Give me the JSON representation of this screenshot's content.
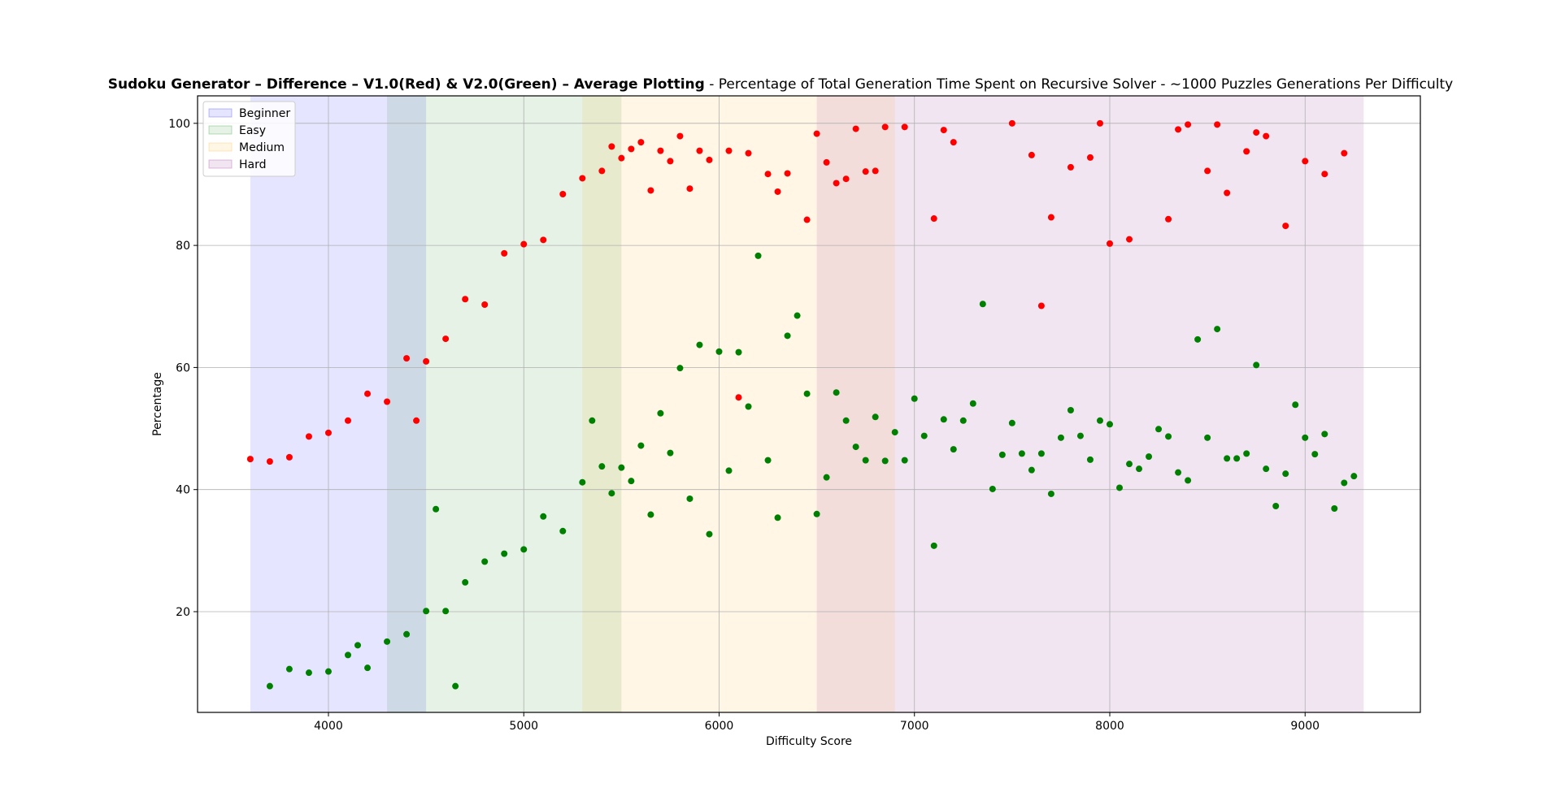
{
  "chart_data": {
    "type": "scatter",
    "title_bold": "Sudoku Generator  – Difference  –  V1.0(Red) & V2.0(Green)  – Average Plotting",
    "title_rest": " - Percentage of Total Generation Time Spent on Recursive Solver - ~1000 Puzzles Generations Per Difficulty",
    "xlabel": "Difficulty Score",
    "ylabel": "Percentage",
    "xlim": [
      3330,
      9590
    ],
    "ylim": [
      3.5,
      104.5
    ],
    "xticks": [
      4000,
      5000,
      6000,
      7000,
      8000,
      9000
    ],
    "yticks": [
      20,
      40,
      60,
      80,
      100
    ],
    "grid": true,
    "legend_position": "upper-left",
    "bands": [
      {
        "name": "Beginner",
        "x0": 3600,
        "x1": 4500,
        "color": "#0000ff",
        "alpha": 0.1
      },
      {
        "name": "Easy",
        "x0": 4300,
        "x1": 5500,
        "color": "#008000",
        "alpha": 0.1
      },
      {
        "name": "Medium",
        "x0": 5300,
        "x1": 6900,
        "color": "#ffa500",
        "alpha": 0.1
      },
      {
        "name": "Hard",
        "x0": 6500,
        "x1": 9300,
        "color": "#800080",
        "alpha": 0.1
      }
    ],
    "series": [
      {
        "color": "#ff0000",
        "points": [
          [
            3600,
            45
          ],
          [
            3700,
            44.6
          ],
          [
            3800,
            45.3
          ],
          [
            3900,
            48.7
          ],
          [
            4000,
            49.3
          ],
          [
            4100,
            51.3
          ],
          [
            4200,
            55.7
          ],
          [
            4300,
            54.4
          ],
          [
            4400,
            61.5
          ],
          [
            4450,
            51.3
          ],
          [
            4500,
            61
          ],
          [
            4600,
            64.7
          ],
          [
            4700,
            71.2
          ],
          [
            4800,
            70.3
          ],
          [
            4900,
            78.7
          ],
          [
            5000,
            80.2
          ],
          [
            5100,
            80.9
          ],
          [
            5200,
            88.4
          ],
          [
            5300,
            91
          ],
          [
            5400,
            92.2
          ],
          [
            5450,
            96.2
          ],
          [
            5500,
            94.3
          ],
          [
            5550,
            95.8
          ],
          [
            5600,
            96.9
          ],
          [
            5650,
            89
          ],
          [
            5700,
            95.5
          ],
          [
            5750,
            93.8
          ],
          [
            5800,
            97.9
          ],
          [
            5850,
            89.3
          ],
          [
            5900,
            95.5
          ],
          [
            5950,
            94
          ],
          [
            6050,
            95.5
          ],
          [
            6100,
            55.1
          ],
          [
            6150,
            95.1
          ],
          [
            6250,
            91.7
          ],
          [
            6300,
            88.8
          ],
          [
            6350,
            91.8
          ],
          [
            6450,
            84.2
          ],
          [
            6500,
            98.3
          ],
          [
            6550,
            93.6
          ],
          [
            6600,
            90.2
          ],
          [
            6650,
            90.9
          ],
          [
            6700,
            99.1
          ],
          [
            6750,
            92.1
          ],
          [
            6800,
            92.2
          ],
          [
            6850,
            99.4
          ],
          [
            6950,
            99.4
          ],
          [
            7100,
            84.4
          ],
          [
            7150,
            98.9
          ],
          [
            7200,
            96.9
          ],
          [
            7500,
            100
          ],
          [
            7600,
            94.8
          ],
          [
            7650,
            70.1
          ],
          [
            7700,
            84.6
          ],
          [
            7800,
            92.8
          ],
          [
            7900,
            94.4
          ],
          [
            7950,
            100
          ],
          [
            8000,
            80.3
          ],
          [
            8100,
            81
          ],
          [
            8300,
            84.3
          ],
          [
            8350,
            99
          ],
          [
            8400,
            99.8
          ],
          [
            8500,
            92.2
          ],
          [
            8550,
            99.8
          ],
          [
            8600,
            88.6
          ],
          [
            8700,
            95.4
          ],
          [
            8750,
            98.5
          ],
          [
            8800,
            97.9
          ],
          [
            8900,
            83.2
          ],
          [
            9000,
            93.8
          ],
          [
            9100,
            91.7
          ],
          [
            9200,
            95.1
          ]
        ]
      },
      {
        "color": "#008000",
        "points": [
          [
            3700,
            7.8
          ],
          [
            3800,
            10.6
          ],
          [
            3900,
            10
          ],
          [
            4000,
            10.2
          ],
          [
            4100,
            12.9
          ],
          [
            4150,
            14.5
          ],
          [
            4200,
            10.8
          ],
          [
            4300,
            15.1
          ],
          [
            4400,
            16.3
          ],
          [
            4500,
            20.1
          ],
          [
            4550,
            36.8
          ],
          [
            4600,
            20.1
          ],
          [
            4650,
            7.8
          ],
          [
            4700,
            24.8
          ],
          [
            4800,
            28.2
          ],
          [
            4900,
            29.5
          ],
          [
            5000,
            30.2
          ],
          [
            5100,
            35.6
          ],
          [
            5200,
            33.2
          ],
          [
            5300,
            41.2
          ],
          [
            5350,
            51.3
          ],
          [
            5400,
            43.8
          ],
          [
            5450,
            39.4
          ],
          [
            5500,
            43.6
          ],
          [
            5550,
            41.4
          ],
          [
            5600,
            47.2
          ],
          [
            5650,
            35.9
          ],
          [
            5700,
            52.5
          ],
          [
            5750,
            46
          ],
          [
            5800,
            59.9
          ],
          [
            5850,
            38.5
          ],
          [
            5900,
            63.7
          ],
          [
            5950,
            32.7
          ],
          [
            6000,
            62.6
          ],
          [
            6050,
            43.1
          ],
          [
            6100,
            62.5
          ],
          [
            6150,
            53.6
          ],
          [
            6200,
            78.3
          ],
          [
            6250,
            44.8
          ],
          [
            6300,
            35.4
          ],
          [
            6350,
            65.2
          ],
          [
            6400,
            68.5
          ],
          [
            6450,
            55.7
          ],
          [
            6500,
            36
          ],
          [
            6550,
            42
          ],
          [
            6600,
            55.9
          ],
          [
            6650,
            51.3
          ],
          [
            6700,
            47
          ],
          [
            6750,
            44.8
          ],
          [
            6800,
            51.9
          ],
          [
            6850,
            44.7
          ],
          [
            6900,
            49.4
          ],
          [
            6950,
            44.8
          ],
          [
            7000,
            54.9
          ],
          [
            7050,
            48.8
          ],
          [
            7100,
            30.8
          ],
          [
            7150,
            51.5
          ],
          [
            7200,
            46.6
          ],
          [
            7250,
            51.3
          ],
          [
            7300,
            54.1
          ],
          [
            7350,
            70.4
          ],
          [
            7400,
            40.1
          ],
          [
            7450,
            45.7
          ],
          [
            7500,
            50.9
          ],
          [
            7550,
            45.9
          ],
          [
            7600,
            43.2
          ],
          [
            7650,
            45.9
          ],
          [
            7700,
            39.3
          ],
          [
            7750,
            48.5
          ],
          [
            7800,
            53
          ],
          [
            7850,
            48.8
          ],
          [
            7900,
            44.9
          ],
          [
            7950,
            51.3
          ],
          [
            8000,
            50.7
          ],
          [
            8050,
            40.3
          ],
          [
            8100,
            44.2
          ],
          [
            8150,
            43.4
          ],
          [
            8200,
            45.4
          ],
          [
            8250,
            49.9
          ],
          [
            8300,
            48.7
          ],
          [
            8350,
            42.8
          ],
          [
            8400,
            41.5
          ],
          [
            8450,
            64.6
          ],
          [
            8500,
            48.5
          ],
          [
            8550,
            66.3
          ],
          [
            8600,
            45.1
          ],
          [
            8650,
            45.1
          ],
          [
            8700,
            45.9
          ],
          [
            8750,
            60.4
          ],
          [
            8800,
            43.4
          ],
          [
            8850,
            37.3
          ],
          [
            8900,
            42.6
          ],
          [
            8950,
            53.9
          ],
          [
            9000,
            48.5
          ],
          [
            9050,
            45.8
          ],
          [
            9100,
            49.1
          ],
          [
            9150,
            36.9
          ],
          [
            9200,
            41.1
          ],
          [
            9250,
            42.2
          ]
        ]
      }
    ]
  }
}
